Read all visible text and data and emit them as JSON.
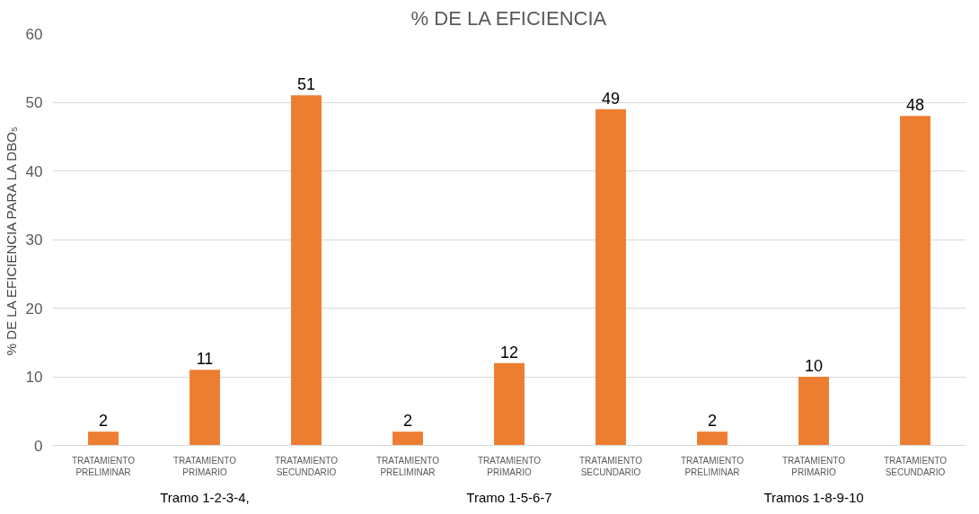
{
  "chart_data": {
    "type": "bar",
    "title": "% DE LA EFICIENCIA",
    "ylabel": "% DE LA EFICIENCIA PARA LA DBO₅",
    "categories": [
      "TRATAMIENTO PRELIMINAR",
      "TRATAMIENTO PRIMARIO",
      "TRATAMIENTO SECUNDARIO",
      "TRATAMIENTO PRELIMINAR",
      "TRATAMIENTO PRIMARIO",
      "TRATAMIENTO SECUNDARIO",
      "TRATAMIENTO PRELIMINAR",
      "TRATAMIENTO PRIMARIO",
      "TRATAMIENTO SECUNDARIO"
    ],
    "values": [
      2,
      11,
      51,
      2,
      12,
      49,
      2,
      10,
      48
    ],
    "color": "#ed7d31",
    "annotations": [
      "Tramo 1-2-3-4,",
      "Tramo 1-5-6-7",
      "Tramos 1-8-9-10"
    ],
    "ylim": [
      0,
      60
    ],
    "yticks": [
      0,
      10,
      20,
      30,
      40,
      50,
      60
    ],
    "grid": "y",
    "data_labels": true
  }
}
